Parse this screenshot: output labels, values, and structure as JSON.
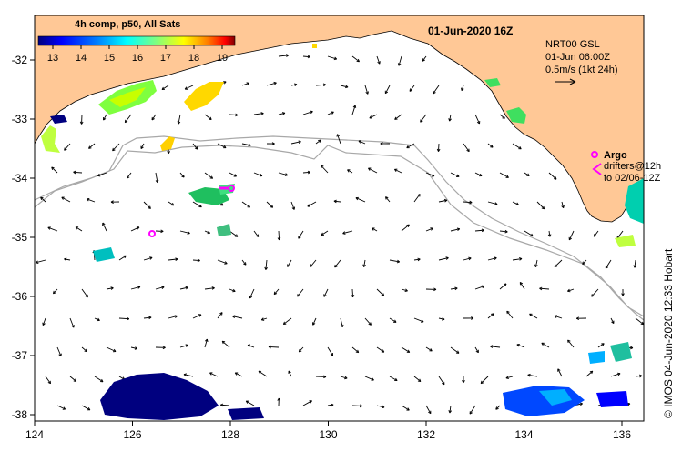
{
  "title": "01-Jun-2020 16Z",
  "legend": {
    "title": "4h comp, p50, All Sats",
    "ticks": [
      "13",
      "14",
      "15",
      "16",
      "17",
      "18",
      "19"
    ],
    "colors": [
      "#00007f",
      "#0000ff",
      "#007fff",
      "#00ffff",
      "#7fff7f",
      "#ffff00",
      "#ff7f00",
      "#ff0000",
      "#7f0000"
    ]
  },
  "current_info": {
    "line1": "NRT00 GSL",
    "line2": "01-Jun 06:00Z",
    "line3": "0.5m/s (1kt 24h)"
  },
  "argo": {
    "label": "Argo",
    "drifters_line1": "drifters@12h",
    "drifters_line2": "to 02/06-12Z",
    "color": "#ff00ff"
  },
  "credit": "© IMOS 04-Jun-2020 12:33 Hobart",
  "axes": {
    "x_ticks": [
      "124",
      "126",
      "128",
      "130",
      "132",
      "134",
      "136"
    ],
    "y_ticks": [
      "-32",
      "-33",
      "-34",
      "-35",
      "-36",
      "-37",
      "-38"
    ]
  },
  "colors": {
    "land": "#ffc896",
    "ocean": "#ffffff",
    "bathymetry": "#a8a8a8"
  }
}
